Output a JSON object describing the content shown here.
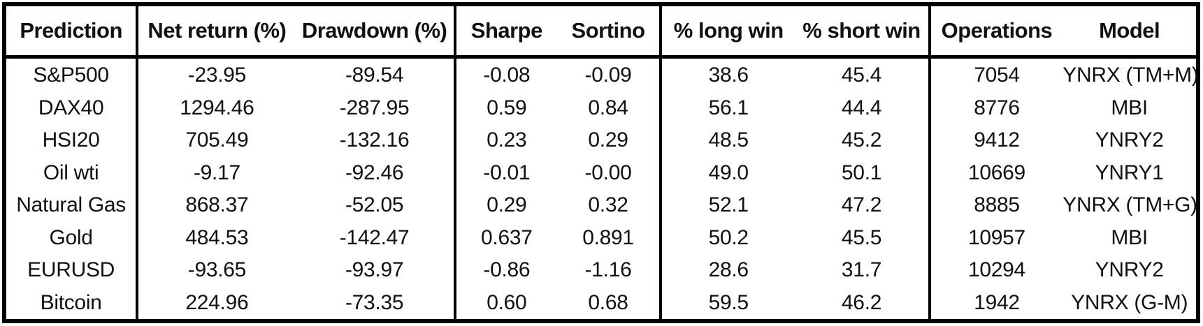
{
  "table": {
    "columns": [
      "Prediction",
      "Net return (%)",
      "Drawdown (%)",
      "Sharpe",
      "Sortino",
      "% long win",
      "% short win",
      "Operations",
      "Model"
    ],
    "rows": [
      [
        "S&P500",
        "-23.95",
        "-89.54",
        "-0.08",
        "-0.09",
        "38.6",
        "45.4",
        "7054",
        "YNRX (TM+M)"
      ],
      [
        "DAX40",
        "1294.46",
        "-287.95",
        "0.59",
        "0.84",
        "56.1",
        "44.4",
        "8776",
        "MBI"
      ],
      [
        "HSI20",
        "705.49",
        "-132.16",
        "0.23",
        "0.29",
        "48.5",
        "45.2",
        "9412",
        "YNRY2"
      ],
      [
        "Oil wti",
        "-9.17",
        "-92.46",
        "-0.01",
        "-0.00",
        "49.0",
        "50.1",
        "10669",
        "YNRY1"
      ],
      [
        "Natural Gas",
        "868.37",
        "-52.05",
        "0.29",
        "0.32",
        "52.1",
        "47.2",
        "8885",
        "YNRX (TM+G)"
      ],
      [
        "Gold",
        "484.53",
        "-142.47",
        "0.637",
        "0.891",
        "50.2",
        "45.5",
        "10957",
        "MBI"
      ],
      [
        "EURUSD",
        "-93.65",
        "-93.97",
        "-0.86",
        "-1.16",
        "28.6",
        "31.7",
        "10294",
        "YNRY2"
      ],
      [
        "Bitcoin",
        "224.96",
        "-73.35",
        "0.60",
        "0.68",
        "59.5",
        "46.2",
        "1942",
        "YNRX (G-M)"
      ]
    ]
  },
  "colors": {
    "border": "#000000",
    "text": "#111111",
    "background": "#ffffff"
  }
}
